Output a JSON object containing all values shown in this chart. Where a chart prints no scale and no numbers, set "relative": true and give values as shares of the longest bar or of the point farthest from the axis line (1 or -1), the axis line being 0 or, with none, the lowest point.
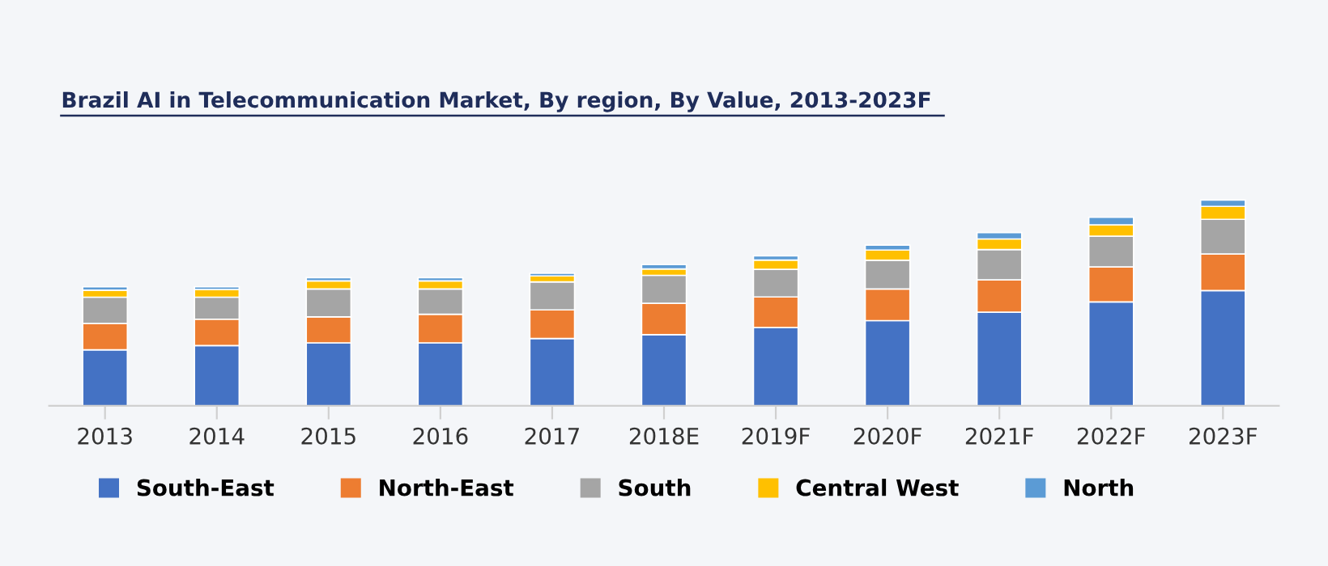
{
  "chart_data": {
    "type": "bar",
    "stacked": true,
    "relative": true,
    "title": "Brazil AI in Telecommunication Market, By region, By Value, 2013-2023F",
    "categories": [
      "2013",
      "2014",
      "2015",
      "2016",
      "2017",
      "2018E",
      "2019F",
      "2020F",
      "2021F",
      "2022F",
      "2023F"
    ],
    "series": [
      {
        "name": "South-East",
        "color": "#4472c4",
        "values": [
          0.272,
          0.293,
          0.306,
          0.306,
          0.327,
          0.346,
          0.38,
          0.414,
          0.455,
          0.505,
          0.56
        ]
      },
      {
        "name": "North-East",
        "color": "#ed7d31",
        "values": [
          0.128,
          0.128,
          0.126,
          0.139,
          0.139,
          0.152,
          0.149,
          0.154,
          0.157,
          0.17,
          0.178
        ]
      },
      {
        "name": "South",
        "color": "#a5a5a5",
        "values": [
          0.128,
          0.107,
          0.136,
          0.123,
          0.136,
          0.136,
          0.134,
          0.139,
          0.147,
          0.149,
          0.168
        ]
      },
      {
        "name": "Central West",
        "color": "#ffc000",
        "values": [
          0.034,
          0.037,
          0.039,
          0.039,
          0.029,
          0.031,
          0.045,
          0.05,
          0.052,
          0.055,
          0.063
        ]
      },
      {
        "name": "North",
        "color": "#5b9bd5",
        "values": [
          0.016,
          0.013,
          0.016,
          0.016,
          0.013,
          0.021,
          0.021,
          0.024,
          0.031,
          0.037,
          0.031
        ]
      }
    ],
    "legend": "bottom",
    "grid": false
  }
}
